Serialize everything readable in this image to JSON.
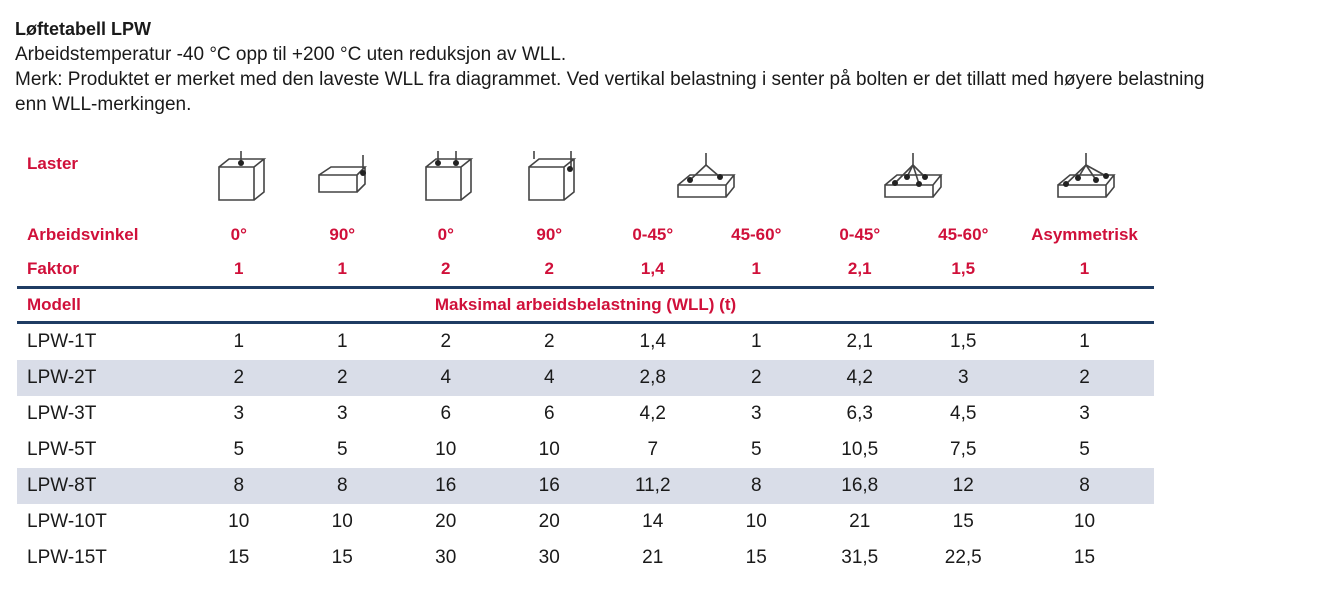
{
  "title": "Løftetabell LPW",
  "line1": "Arbeidstemperatur -40 °C opp til +200 °C uten reduksjon av WLL.",
  "line2": "Merk: Produktet er merket med den laveste WLL fra diagrammet. Ved vertikal belastning i senter på bolten er det tillatt med høyere belastning",
  "line3": "enn WLL-merkingen.",
  "accent": "#d0103a",
  "rule_color": "#1f3c63",
  "stripe_color": "#d9dde8",
  "labels": {
    "laster": "Laster",
    "vinkel": "Arbeidsvinkel",
    "faktor": "Faktor",
    "modell": "Modell",
    "wll": "Maksimal arbeidsbelastning (WLL) (t)"
  },
  "icons": [
    "cube-single-top-icon",
    "flat-box-side-icon",
    "cube-double-top-icon",
    "cube-double-side-icon",
    "plate-two-leg-icon",
    "plate-four-leg-icon",
    "plate-asymmetric-icon"
  ],
  "angles": [
    "0°",
    "90°",
    "0°",
    "90°",
    "0-45°",
    "45-60°",
    "0-45°",
    "45-60°",
    "Asymmetrisk"
  ],
  "factors": [
    "1",
    "1",
    "2",
    "2",
    "1,4",
    "1",
    "2,1",
    "1,5",
    "1"
  ],
  "rows": [
    {
      "model": "LPW-1T",
      "v": [
        "1",
        "1",
        "2",
        "2",
        "1,4",
        "1",
        "2,1",
        "1,5",
        "1"
      ]
    },
    {
      "model": "LPW-2T",
      "v": [
        "2",
        "2",
        "4",
        "4",
        "2,8",
        "2",
        "4,2",
        "3",
        "2"
      ]
    },
    {
      "model": "LPW-3T",
      "v": [
        "3",
        "3",
        "6",
        "6",
        "4,2",
        "3",
        "6,3",
        "4,5",
        "3"
      ]
    },
    {
      "model": "LPW-5T",
      "v": [
        "5",
        "5",
        "10",
        "10",
        "7",
        "5",
        "10,5",
        "7,5",
        "5"
      ]
    },
    {
      "model": "LPW-8T",
      "v": [
        "8",
        "8",
        "16",
        "16",
        "11,2",
        "8",
        "16,8",
        "12",
        "8"
      ]
    },
    {
      "model": "LPW-10T",
      "v": [
        "10",
        "10",
        "20",
        "20",
        "14",
        "10",
        "21",
        "15",
        "10"
      ]
    },
    {
      "model": "LPW-15T",
      "v": [
        "15",
        "15",
        "30",
        "30",
        "21",
        "15",
        "31,5",
        "22,5",
        "15"
      ]
    }
  ]
}
